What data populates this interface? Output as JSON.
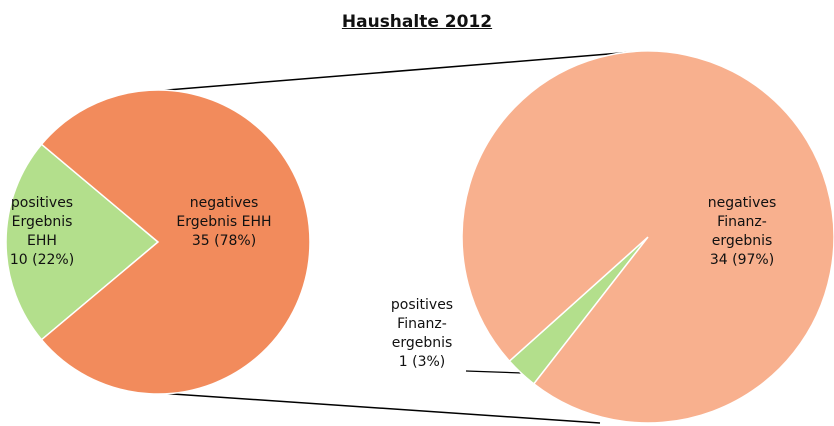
{
  "chart_data": [
    {
      "type": "pie",
      "title": "Haushalte 2012",
      "categories": [
        "positives Ergebnis EHH",
        "negatives Ergebnis EHH"
      ],
      "values": [
        10,
        35
      ],
      "value_labels": [
        "10 (22%)",
        "35 (78%)"
      ],
      "colors": [
        "#b3df8c",
        "#f28b5c"
      ]
    },
    {
      "type": "pie",
      "categories": [
        "positives Finanz-ergebnis",
        "negatives Finanz-ergebnis"
      ],
      "values": [
        1,
        34
      ],
      "value_labels": [
        "1 (3%)",
        "34 (97%)"
      ],
      "colors": [
        "#b3df8c",
        "#f8b08e"
      ]
    }
  ]
}
